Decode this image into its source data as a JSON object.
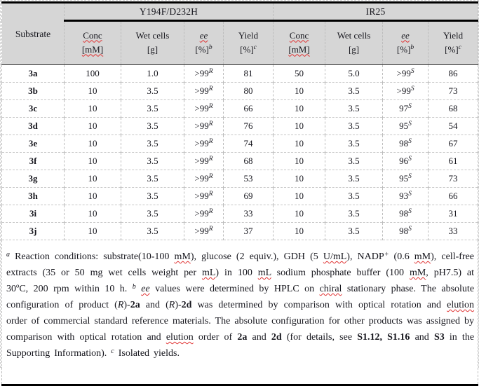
{
  "colors": {
    "header_bg": "#d6d6d6",
    "rule": "#000000",
    "grid": "#bcbcbc",
    "squiggle": "#e03131",
    "text": "#16161d"
  },
  "table": {
    "corner": "Substrate",
    "groups": [
      "Y194F/D232H",
      "IR25"
    ],
    "columns": [
      {
        "top": "Conc",
        "bot": "[mM]",
        "top_sq": true,
        "bot_sq": true,
        "sup": ""
      },
      {
        "top": "Wet cells",
        "bot": "[g]",
        "sup": ""
      },
      {
        "top": "ee",
        "bot": "[%]",
        "sup": "b",
        "top_i": true,
        "top_sq": true
      },
      {
        "top": "Yield",
        "bot": "[%]",
        "sup": "c"
      },
      {
        "top": "Conc",
        "bot": "[mM]",
        "top_sq": true,
        "bot_sq": true,
        "sup": ""
      },
      {
        "top": "Wet cells",
        "bot": "[g]",
        "sup": ""
      },
      {
        "top": "ee",
        "bot": "[%]",
        "sup": "b",
        "top_i": true,
        "top_sq": true
      },
      {
        "top": "Yield",
        "bot": "[%]",
        "sup": "c"
      }
    ],
    "rows": [
      {
        "substrate": "3a",
        "cells": [
          {
            "t": "100"
          },
          {
            "t": "1.0"
          },
          {
            "t": ">99",
            "sup": "R"
          },
          {
            "t": "81"
          },
          {
            "t": "50"
          },
          {
            "t": "5.0"
          },
          {
            "t": ">99",
            "sup": "S"
          },
          {
            "t": "86"
          }
        ]
      },
      {
        "substrate": "3b",
        "cells": [
          {
            "t": "10"
          },
          {
            "t": "3.5"
          },
          {
            "t": ">99",
            "sup": "R"
          },
          {
            "t": "80"
          },
          {
            "t": "10"
          },
          {
            "t": "3.5"
          },
          {
            "t": ">99",
            "sup": "S"
          },
          {
            "t": "73"
          }
        ]
      },
      {
        "substrate": "3c",
        "cells": [
          {
            "t": "10"
          },
          {
            "t": "3.5"
          },
          {
            "t": ">99",
            "sup": "R"
          },
          {
            "t": "66"
          },
          {
            "t": "10"
          },
          {
            "t": "3.5"
          },
          {
            "t": "97",
            "sup": "S"
          },
          {
            "t": "68"
          }
        ]
      },
      {
        "substrate": "3d",
        "cells": [
          {
            "t": "10"
          },
          {
            "t": "3.5"
          },
          {
            "t": ">99",
            "sup": "R"
          },
          {
            "t": "76"
          },
          {
            "t": "10"
          },
          {
            "t": "3.5"
          },
          {
            "t": "95",
            "sup": "S"
          },
          {
            "t": "54"
          }
        ]
      },
      {
        "substrate": "3e",
        "cells": [
          {
            "t": "10"
          },
          {
            "t": "3.5"
          },
          {
            "t": ">99",
            "sup": "R"
          },
          {
            "t": "74"
          },
          {
            "t": "10"
          },
          {
            "t": "3.5"
          },
          {
            "t": "98",
            "sup": "S"
          },
          {
            "t": "67"
          }
        ]
      },
      {
        "substrate": "3f",
        "cells": [
          {
            "t": "10"
          },
          {
            "t": "3.5"
          },
          {
            "t": ">99",
            "sup": "R"
          },
          {
            "t": "68"
          },
          {
            "t": "10"
          },
          {
            "t": "3.5"
          },
          {
            "t": "96",
            "sup": "S"
          },
          {
            "t": "61"
          }
        ]
      },
      {
        "substrate": "3g",
        "cells": [
          {
            "t": "10"
          },
          {
            "t": "3.5"
          },
          {
            "t": ">99",
            "sup": "R"
          },
          {
            "t": "53"
          },
          {
            "t": "10"
          },
          {
            "t": "3.5"
          },
          {
            "t": "95",
            "sup": "S"
          },
          {
            "t": "73"
          }
        ]
      },
      {
        "substrate": "3h",
        "cells": [
          {
            "t": "10"
          },
          {
            "t": "3.5"
          },
          {
            "t": ">99",
            "sup": "R"
          },
          {
            "t": "69"
          },
          {
            "t": "10"
          },
          {
            "t": "3.5"
          },
          {
            "t": "93",
            "sup": "S"
          },
          {
            "t": "66"
          }
        ]
      },
      {
        "substrate": "3i",
        "cells": [
          {
            "t": "10"
          },
          {
            "t": "3.5"
          },
          {
            "t": ">99",
            "sup": "R"
          },
          {
            "t": "33"
          },
          {
            "t": "10"
          },
          {
            "t": "3.5"
          },
          {
            "t": "98",
            "sup": "S"
          },
          {
            "t": "31"
          }
        ]
      },
      {
        "substrate": "3j",
        "cells": [
          {
            "t": "10"
          },
          {
            "t": "3.5"
          },
          {
            "t": ">99",
            "sup": "R"
          },
          {
            "t": "37"
          },
          {
            "t": "10"
          },
          {
            "t": "3.5"
          },
          {
            "t": "98",
            "sup": "S"
          },
          {
            "t": "33"
          }
        ]
      }
    ]
  },
  "footnote": {
    "segments": [
      {
        "t": "a",
        "s": "supi"
      },
      {
        "t": " Reaction conditions: substrate(10-100 ",
        "s": ""
      },
      {
        "t": "mM",
        "s": "sq"
      },
      {
        "t": "), glucose (2 equiv.), GDH (5 ",
        "s": ""
      },
      {
        "t": "U/mL",
        "s": "sq"
      },
      {
        "t": "), NADP",
        "s": ""
      },
      {
        "t": "+",
        "s": "sup"
      },
      {
        "t": " (0.6 ",
        "s": ""
      },
      {
        "t": "mM",
        "s": "sq"
      },
      {
        "t": "), cell-free extracts (35 or 50 mg wet cells weight per ",
        "s": ""
      },
      {
        "t": "mL",
        "s": "sq"
      },
      {
        "t": ") in 100 ",
        "s": ""
      },
      {
        "t": "mL",
        "s": "sq"
      },
      {
        "t": " sodium phosphate buffer (100 ",
        "s": ""
      },
      {
        "t": "mM",
        "s": "sq"
      },
      {
        "t": ", pH7.5) at 30ºC, 200 rpm within 10 h. ",
        "s": ""
      },
      {
        "t": "b",
        "s": "supi"
      },
      {
        "t": " ",
        "s": ""
      },
      {
        "t": "ee",
        "s": "isq"
      },
      {
        "t": " values were determined by HPLC on ",
        "s": ""
      },
      {
        "t": "chiral",
        "s": "sq"
      },
      {
        "t": " stationary phase. The absolute configuration of product (",
        "s": ""
      },
      {
        "t": "R",
        "s": "i"
      },
      {
        "t": ")-",
        "s": ""
      },
      {
        "t": "2a",
        "s": "b"
      },
      {
        "t": " and (",
        "s": ""
      },
      {
        "t": "R",
        "s": "i"
      },
      {
        "t": ")-",
        "s": ""
      },
      {
        "t": "2d",
        "s": "b"
      },
      {
        "t": " was determined by comparison with optical rotation and ",
        "s": ""
      },
      {
        "t": "elution",
        "s": "sq"
      },
      {
        "t": " order of commercial standard reference materials. The absolute configuration for other products was assigned by comparison with optical rotation and ",
        "s": ""
      },
      {
        "t": "elution",
        "s": "sq"
      },
      {
        "t": " order of ",
        "s": ""
      },
      {
        "t": "2a",
        "s": "b"
      },
      {
        "t": " and ",
        "s": ""
      },
      {
        "t": "2d",
        "s": "b"
      },
      {
        "t": " (for details, see ",
        "s": ""
      },
      {
        "t": "S1.12, S1.16",
        "s": "b"
      },
      {
        "t": " and ",
        "s": ""
      },
      {
        "t": "S3",
        "s": "b"
      },
      {
        "t": " in the Supporting Information). ",
        "s": ""
      },
      {
        "t": "c",
        "s": "supi"
      },
      {
        "t": " Isolated yields.",
        "s": ""
      }
    ]
  }
}
